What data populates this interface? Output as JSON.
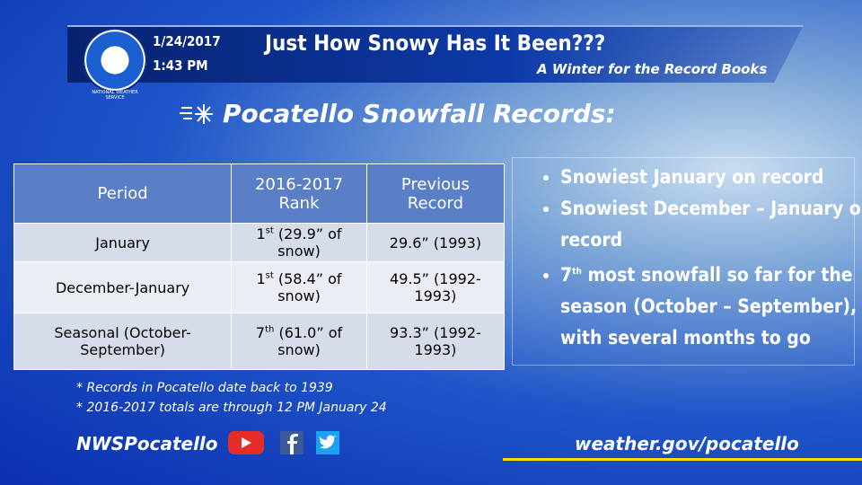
{
  "header": {
    "logo_text": "NATIONAL WEATHER SERVICE",
    "date": "1/24/2017",
    "time": "1:43 PM",
    "title": "Just How Snowy Has It Been???",
    "subtitle": "A Winter for the Record Books"
  },
  "section_title": "Pocatello Snowfall Records:",
  "table": {
    "columns": [
      "Period",
      "2016-2017 Rank",
      "Previous Record"
    ],
    "rows": [
      [
        "January",
        {
          "rank": "1",
          "suffix": "st",
          "rest": " (29.9” of snow)"
        },
        "29.6” (1993)"
      ],
      [
        "December-January",
        {
          "rank": "1",
          "suffix": "st",
          "rest": " (58.4” of snow)"
        },
        "49.5” (1992-1993)"
      ],
      [
        "Seasonal (October-September)",
        {
          "rank": "7",
          "suffix": "th",
          "rest": " (61.0” of snow)"
        },
        "93.3” (1992-1993)"
      ]
    ]
  },
  "notes": [
    "* Records in Pocatello date back to 1939",
    "* 2016-2017 totals are through 12 PM January 24"
  ],
  "bullets": [
    {
      "text": "Snowiest January on record"
    },
    {
      "text": "Snowiest December – January on record"
    },
    {
      "rank": "7",
      "suffix": "th",
      "text": " most snowfall so far for the season (October – September), with several months to go"
    }
  ],
  "footer": {
    "handle": "NWSPocatello",
    "url": "weather.gov/pocatello"
  }
}
